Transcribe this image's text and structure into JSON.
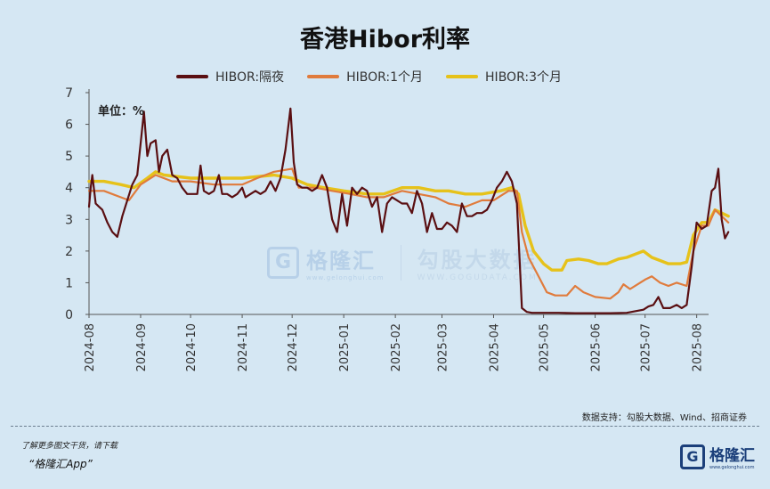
{
  "chart_data": {
    "type": "line",
    "title": "香港Hibor利率",
    "unit_label": "单位：%",
    "ylim": [
      0,
      7
    ],
    "y_ticks": [
      0,
      1,
      2,
      3,
      4,
      5,
      6,
      7
    ],
    "x_range": [
      "2024-08-01",
      "2025-08-06"
    ],
    "x_ticks": [
      "2024-08",
      "2024-09",
      "2024-10",
      "2024-11",
      "2024-12",
      "2025-01",
      "2025-02",
      "2025-03",
      "2025-04",
      "2025-05",
      "2025-06",
      "2025-07",
      "2025-08"
    ],
    "legend_position": "top",
    "grid": false,
    "series": [
      {
        "name": "HIBOR:隔夜",
        "color": "#5a0f12",
        "points": [
          [
            "2024-08-01",
            3.4
          ],
          [
            "2024-08-02",
            4.0
          ],
          [
            "2024-08-03",
            4.4
          ],
          [
            "2024-08-05",
            3.5
          ],
          [
            "2024-08-07",
            3.4
          ],
          [
            "2024-08-09",
            3.3
          ],
          [
            "2024-08-12",
            2.9
          ],
          [
            "2024-08-15",
            2.6
          ],
          [
            "2024-08-18",
            2.45
          ],
          [
            "2024-08-21",
            3.1
          ],
          [
            "2024-08-24",
            3.6
          ],
          [
            "2024-08-27",
            4.1
          ],
          [
            "2024-08-30",
            4.4
          ],
          [
            "2024-09-01",
            5.4
          ],
          [
            "2024-09-03",
            6.4
          ],
          [
            "2024-09-05",
            5.0
          ],
          [
            "2024-09-07",
            5.4
          ],
          [
            "2024-09-10",
            5.5
          ],
          [
            "2024-09-12",
            4.5
          ],
          [
            "2024-09-14",
            5.0
          ],
          [
            "2024-09-17",
            5.2
          ],
          [
            "2024-09-20",
            4.4
          ],
          [
            "2024-09-23",
            4.3
          ],
          [
            "2024-09-26",
            4.0
          ],
          [
            "2024-09-29",
            3.8
          ],
          [
            "2024-10-02",
            3.8
          ],
          [
            "2024-10-05",
            3.8
          ],
          [
            "2024-10-07",
            4.7
          ],
          [
            "2024-10-09",
            3.9
          ],
          [
            "2024-10-12",
            3.8
          ],
          [
            "2024-10-15",
            3.9
          ],
          [
            "2024-10-18",
            4.4
          ],
          [
            "2024-10-20",
            3.8
          ],
          [
            "2024-10-23",
            3.8
          ],
          [
            "2024-10-26",
            3.7
          ],
          [
            "2024-10-29",
            3.8
          ],
          [
            "2024-11-01",
            4.0
          ],
          [
            "2024-11-03",
            3.7
          ],
          [
            "2024-11-06",
            3.8
          ],
          [
            "2024-11-09",
            3.9
          ],
          [
            "2024-11-12",
            3.8
          ],
          [
            "2024-11-15",
            3.9
          ],
          [
            "2024-11-18",
            4.2
          ],
          [
            "2024-11-21",
            3.9
          ],
          [
            "2024-11-24",
            4.3
          ],
          [
            "2024-11-27",
            5.2
          ],
          [
            "2024-11-30",
            6.5
          ],
          [
            "2024-12-02",
            4.8
          ],
          [
            "2024-12-04",
            4.1
          ],
          [
            "2024-12-07",
            4.0
          ],
          [
            "2024-12-10",
            4.0
          ],
          [
            "2024-12-13",
            3.9
          ],
          [
            "2024-12-16",
            4.0
          ],
          [
            "2024-12-19",
            4.4
          ],
          [
            "2024-12-22",
            4.0
          ],
          [
            "2024-12-25",
            3.0
          ],
          [
            "2024-12-28",
            2.6
          ],
          [
            "2024-12-31",
            3.8
          ],
          [
            "2025-01-03",
            2.8
          ],
          [
            "2025-01-06",
            4.0
          ],
          [
            "2025-01-09",
            3.8
          ],
          [
            "2025-01-12",
            4.0
          ],
          [
            "2025-01-15",
            3.9
          ],
          [
            "2025-01-18",
            3.4
          ],
          [
            "2025-01-21",
            3.7
          ],
          [
            "2025-01-24",
            2.6
          ],
          [
            "2025-01-27",
            3.5
          ],
          [
            "2025-01-30",
            3.7
          ],
          [
            "2025-02-02",
            3.6
          ],
          [
            "2025-02-05",
            3.5
          ],
          [
            "2025-02-08",
            3.5
          ],
          [
            "2025-02-11",
            3.2
          ],
          [
            "2025-02-14",
            3.9
          ],
          [
            "2025-02-17",
            3.5
          ],
          [
            "2025-02-20",
            2.6
          ],
          [
            "2025-02-23",
            3.2
          ],
          [
            "2025-02-26",
            2.7
          ],
          [
            "2025-03-01",
            2.7
          ],
          [
            "2025-03-04",
            2.9
          ],
          [
            "2025-03-07",
            2.8
          ],
          [
            "2025-03-10",
            2.6
          ],
          [
            "2025-03-13",
            3.5
          ],
          [
            "2025-03-16",
            3.1
          ],
          [
            "2025-03-19",
            3.1
          ],
          [
            "2025-03-22",
            3.2
          ],
          [
            "2025-03-25",
            3.2
          ],
          [
            "2025-03-28",
            3.3
          ],
          [
            "2025-03-31",
            3.6
          ],
          [
            "2025-04-03",
            4.0
          ],
          [
            "2025-04-06",
            4.2
          ],
          [
            "2025-04-09",
            4.5
          ],
          [
            "2025-04-12",
            4.2
          ],
          [
            "2025-04-15",
            3.5
          ],
          [
            "2025-04-18",
            0.2
          ],
          [
            "2025-04-21",
            0.08
          ],
          [
            "2025-04-24",
            0.05
          ],
          [
            "2025-05-01",
            0.05
          ],
          [
            "2025-05-10",
            0.05
          ],
          [
            "2025-05-20",
            0.04
          ],
          [
            "2025-06-01",
            0.04
          ],
          [
            "2025-06-10",
            0.04
          ],
          [
            "2025-06-20",
            0.05
          ],
          [
            "2025-06-25",
            0.1
          ],
          [
            "2025-06-30",
            0.15
          ],
          [
            "2025-07-03",
            0.25
          ],
          [
            "2025-07-06",
            0.3
          ],
          [
            "2025-07-09",
            0.55
          ],
          [
            "2025-07-12",
            0.2
          ],
          [
            "2025-07-16",
            0.2
          ],
          [
            "2025-07-20",
            0.3
          ],
          [
            "2025-07-23",
            0.2
          ],
          [
            "2025-07-26",
            0.3
          ],
          [
            "2025-07-29",
            1.5
          ],
          [
            "2025-08-01",
            2.9
          ],
          [
            "2025-08-04",
            2.7
          ],
          [
            "2025-08-07",
            2.8
          ],
          [
            "2025-08-10",
            3.9
          ],
          [
            "2025-08-12",
            4.0
          ],
          [
            "2025-08-14",
            4.6
          ],
          [
            "2025-08-16",
            3.0
          ],
          [
            "2025-08-18",
            2.4
          ],
          [
            "2025-08-20",
            2.6
          ]
        ]
      },
      {
        "name": "HIBOR:1个月",
        "color": "#e07b3c",
        "points": [
          [
            "2024-08-01",
            3.9
          ],
          [
            "2024-08-10",
            3.9
          ],
          [
            "2024-08-20",
            3.7
          ],
          [
            "2024-08-25",
            3.6
          ],
          [
            "2024-09-01",
            4.1
          ],
          [
            "2024-09-10",
            4.4
          ],
          [
            "2024-09-20",
            4.2
          ],
          [
            "2024-10-01",
            4.2
          ],
          [
            "2024-10-15",
            4.1
          ],
          [
            "2024-11-01",
            4.1
          ],
          [
            "2024-11-10",
            4.3
          ],
          [
            "2024-11-20",
            4.5
          ],
          [
            "2024-12-01",
            4.6
          ],
          [
            "2024-12-05",
            4.0
          ],
          [
            "2024-12-15",
            4.0
          ],
          [
            "2024-12-25",
            3.9
          ],
          [
            "2025-01-05",
            3.8
          ],
          [
            "2025-01-15",
            3.7
          ],
          [
            "2025-01-25",
            3.7
          ],
          [
            "2025-02-05",
            3.9
          ],
          [
            "2025-02-15",
            3.8
          ],
          [
            "2025-02-25",
            3.7
          ],
          [
            "2025-03-05",
            3.5
          ],
          [
            "2025-03-15",
            3.4
          ],
          [
            "2025-03-25",
            3.6
          ],
          [
            "2025-04-01",
            3.6
          ],
          [
            "2025-04-10",
            3.9
          ],
          [
            "2025-04-15",
            3.9
          ],
          [
            "2025-04-18",
            2.6
          ],
          [
            "2025-04-22",
            1.8
          ],
          [
            "2025-04-28",
            1.2
          ],
          [
            "2025-05-03",
            0.7
          ],
          [
            "2025-05-08",
            0.6
          ],
          [
            "2025-05-15",
            0.6
          ],
          [
            "2025-05-20",
            0.9
          ],
          [
            "2025-05-25",
            0.7
          ],
          [
            "2025-06-01",
            0.55
          ],
          [
            "2025-06-10",
            0.5
          ],
          [
            "2025-06-15",
            0.7
          ],
          [
            "2025-06-18",
            0.95
          ],
          [
            "2025-06-22",
            0.8
          ],
          [
            "2025-06-28",
            1.0
          ],
          [
            "2025-07-01",
            1.1
          ],
          [
            "2025-07-05",
            1.2
          ],
          [
            "2025-07-10",
            1.0
          ],
          [
            "2025-07-15",
            0.9
          ],
          [
            "2025-07-20",
            1.0
          ],
          [
            "2025-07-26",
            0.9
          ],
          [
            "2025-07-30",
            2.0
          ],
          [
            "2025-08-04",
            2.8
          ],
          [
            "2025-08-08",
            2.8
          ],
          [
            "2025-08-12",
            3.3
          ],
          [
            "2025-08-16",
            3.1
          ],
          [
            "2025-08-20",
            2.9
          ]
        ]
      },
      {
        "name": "HIBOR:3个月",
        "color": "#e6c21a",
        "points": [
          [
            "2024-08-01",
            4.2
          ],
          [
            "2024-08-10",
            4.2
          ],
          [
            "2024-08-20",
            4.1
          ],
          [
            "2024-08-28",
            4.0
          ],
          [
            "2024-09-05",
            4.3
          ],
          [
            "2024-09-10",
            4.5
          ],
          [
            "2024-09-15",
            4.4
          ],
          [
            "2024-10-01",
            4.3
          ],
          [
            "2024-10-15",
            4.3
          ],
          [
            "2024-11-01",
            4.3
          ],
          [
            "2024-11-20",
            4.4
          ],
          [
            "2024-12-01",
            4.3
          ],
          [
            "2024-12-10",
            4.1
          ],
          [
            "2024-12-20",
            4.0
          ],
          [
            "2025-01-01",
            3.9
          ],
          [
            "2025-01-15",
            3.8
          ],
          [
            "2025-01-25",
            3.8
          ],
          [
            "2025-02-05",
            4.0
          ],
          [
            "2025-02-15",
            4.0
          ],
          [
            "2025-02-25",
            3.9
          ],
          [
            "2025-03-05",
            3.9
          ],
          [
            "2025-03-15",
            3.8
          ],
          [
            "2025-03-25",
            3.8
          ],
          [
            "2025-04-05",
            3.9
          ],
          [
            "2025-04-12",
            4.0
          ],
          [
            "2025-04-16",
            3.8
          ],
          [
            "2025-04-20",
            2.8
          ],
          [
            "2025-04-25",
            2.0
          ],
          [
            "2025-05-01",
            1.6
          ],
          [
            "2025-05-06",
            1.4
          ],
          [
            "2025-05-12",
            1.4
          ],
          [
            "2025-05-15",
            1.7
          ],
          [
            "2025-05-22",
            1.75
          ],
          [
            "2025-05-28",
            1.7
          ],
          [
            "2025-06-03",
            1.6
          ],
          [
            "2025-06-08",
            1.6
          ],
          [
            "2025-06-15",
            1.75
          ],
          [
            "2025-06-20",
            1.8
          ],
          [
            "2025-06-25",
            1.9
          ],
          [
            "2025-06-30",
            2.0
          ],
          [
            "2025-07-05",
            1.8
          ],
          [
            "2025-07-10",
            1.7
          ],
          [
            "2025-07-15",
            1.6
          ],
          [
            "2025-07-22",
            1.6
          ],
          [
            "2025-07-26",
            1.65
          ],
          [
            "2025-07-30",
            2.5
          ],
          [
            "2025-08-04",
            2.9
          ],
          [
            "2025-08-08",
            2.9
          ],
          [
            "2025-08-12",
            3.3
          ],
          [
            "2025-08-16",
            3.2
          ],
          [
            "2025-08-20",
            3.1
          ]
        ]
      }
    ]
  },
  "watermark": {
    "brand_cn": "格隆汇",
    "brand_url": "www.gelonghui.com",
    "partner_cn": "勾股大数据",
    "partner_url": "WWW.GOGUDATA.COM",
    "logo_letter": "G"
  },
  "source": "数据支持：勾股大数据、Wind、招商证券",
  "footer": {
    "line1": "了解更多图文干货，请下载",
    "line2": "“格隆汇App”",
    "logo_text": "格隆汇",
    "logo_sub": "www.gelonghui.com",
    "logo_letter": "G"
  }
}
